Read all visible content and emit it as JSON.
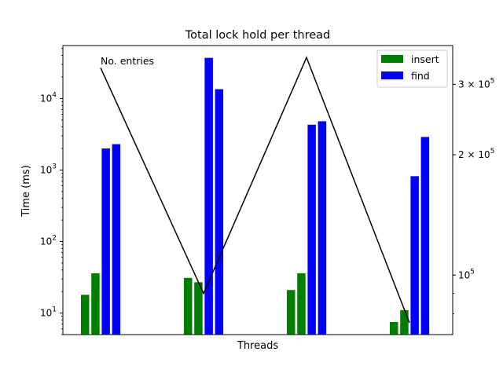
{
  "chart_data": {
    "type": "bar",
    "title": "Total lock hold per thread",
    "xlabel": "Threads",
    "ylabel": "Time (ms)",
    "y_scale": "log",
    "ylim": [
      5,
      55000
    ],
    "yticks": [
      {
        "value": 10,
        "base": "10",
        "exp": "1"
      },
      {
        "value": 100,
        "base": "10",
        "exp": "2"
      },
      {
        "value": 1000,
        "base": "10",
        "exp": "3"
      },
      {
        "value": 10000,
        "base": "10",
        "exp": "4"
      }
    ],
    "bar_groups": [
      {
        "insert": [
          18,
          36
        ],
        "find": [
          2000,
          2300
        ]
      },
      {
        "insert": [
          31,
          27
        ],
        "find": [
          37000,
          13500
        ]
      },
      {
        "insert": [
          21,
          36
        ],
        "find": [
          4300,
          4800
        ]
      },
      {
        "insert": [
          7.5,
          11
        ],
        "find": [
          820,
          2900
        ]
      }
    ],
    "series": [
      {
        "name": "insert",
        "color": "#008000"
      },
      {
        "name": "find",
        "color": "#0000ff"
      }
    ],
    "legend_position": "top-right",
    "secondary_axis": {
      "scale": "log",
      "ylim": [
        71000,
        375000
      ],
      "ticks": [
        {
          "value": 100000,
          "coef": "",
          "base": "10",
          "exp": "5"
        },
        {
          "value": 200000,
          "coef": "2 × ",
          "base": "10",
          "exp": "5"
        },
        {
          "value": 300000,
          "coef": "3 × ",
          "base": "10",
          "exp": "5"
        }
      ]
    },
    "line_series": {
      "label": "No. entries",
      "color": "#000000",
      "values": [
        330000,
        90000,
        350000,
        76000
      ]
    }
  }
}
